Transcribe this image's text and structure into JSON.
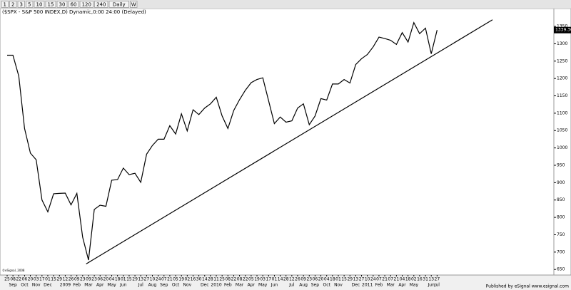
{
  "toolbar": [
    "1",
    "2",
    "3",
    "5",
    "10",
    "15",
    "30",
    "60",
    "120",
    "240",
    "Daily",
    "W"
  ],
  "chart_data": {
    "type": "line",
    "title": "($SPX - S&P 500 INDEX,D) Dynamic,0:00 24:00 (Delayed)",
    "categories": [
      "25",
      "08",
      "22",
      "06",
      "20",
      "03",
      "17",
      "01",
      "15",
      "29",
      "12",
      "26",
      "09",
      "23",
      "09",
      "23",
      "06",
      "20",
      "04",
      "18",
      "01",
      "15",
      "29",
      "13",
      "27",
      "10",
      "24",
      "07",
      "21",
      "05",
      "19",
      "02",
      "16",
      "30",
      "14",
      "28",
      "11",
      "25",
      "08",
      "22",
      "08",
      "22",
      "05",
      "19",
      "03",
      "17",
      "01",
      "14",
      "28",
      "12",
      "26",
      "09",
      "23",
      "06",
      "20",
      "04",
      "18",
      "01",
      "15",
      "29",
      "13",
      "27",
      "10",
      "24",
      "07",
      "21",
      "07",
      "21",
      "04",
      "18",
      "02",
      "16",
      "31",
      "13",
      "27"
    ],
    "month_labels": [
      null,
      "Sep",
      null,
      "Oct",
      null,
      "Nov",
      null,
      "Dec",
      null,
      null,
      "2009",
      null,
      "Feb",
      null,
      "Mar",
      null,
      "Apr",
      null,
      "May",
      null,
      "Jun",
      null,
      null,
      "Jul",
      null,
      "Aug",
      null,
      "Sep",
      null,
      "Oct",
      null,
      "Nov",
      null,
      null,
      "Dec",
      null,
      "2010",
      null,
      "Feb",
      null,
      "Mar",
      null,
      "Apr",
      null,
      "May",
      null,
      "Jun",
      null,
      null,
      "Jul",
      null,
      "Aug",
      null,
      "Sep",
      null,
      "Oct",
      null,
      "Nov",
      null,
      null,
      "Dec",
      null,
      "2011",
      null,
      "Feb",
      null,
      "Mar",
      null,
      "Apr",
      null,
      "May",
      null,
      null,
      "Jun",
      "Jul"
    ],
    "values": [
      1267,
      1267,
      1207,
      1056,
      985,
      966,
      850,
      816,
      868,
      869,
      870,
      836,
      869,
      743,
      677,
      823,
      835,
      832,
      907,
      909,
      942,
      923,
      927,
      901,
      982,
      1007,
      1025,
      1025,
      1064,
      1040,
      1098,
      1049,
      1110,
      1096,
      1115,
      1127,
      1146,
      1092,
      1056,
      1108,
      1139,
      1166,
      1188,
      1197,
      1202,
      1136,
      1070,
      1089,
      1074,
      1078,
      1115,
      1127,
      1067,
      1092,
      1142,
      1138,
      1184,
      1184,
      1197,
      1187,
      1240,
      1257,
      1269,
      1291,
      1319,
      1315,
      1310,
      1298,
      1332,
      1305,
      1361,
      1329,
      1345,
      1271,
      1339.36
    ],
    "color": "#000000",
    "trendline": [
      666,
      1369
    ],
    "ylim": [
      636,
      1387
    ],
    "yticks": [
      650,
      700,
      750,
      800,
      850,
      900,
      950,
      1000,
      1050,
      1100,
      1150,
      1200,
      1250,
      1300,
      1350
    ]
  },
  "footer": {
    "left": "©eSignal, 2008",
    "right": "Published by eSignal  www.esignal.com"
  }
}
